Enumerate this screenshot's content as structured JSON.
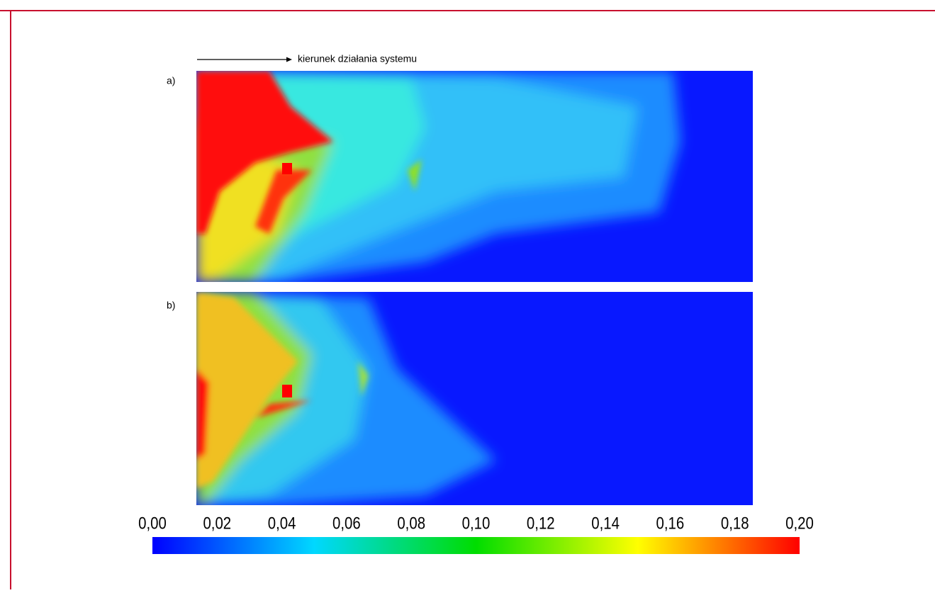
{
  "arrow_label": "kierunek działania systemu",
  "panels": [
    "a)",
    "b)"
  ],
  "colorbar": {
    "lim": [
      0,
      0.2
    ],
    "colors": [
      "#0000ff",
      "#00d8ff",
      "#00dd00",
      "#ffff00",
      "#ff0000"
    ],
    "ticks": [
      {
        "value": 0,
        "label": "0,00"
      },
      {
        "value": 0.02,
        "label": "0,02"
      },
      {
        "value": 0.04,
        "label": "0,04"
      },
      {
        "value": 0.06,
        "label": "0,06"
      },
      {
        "value": 0.08,
        "label": "0,08"
      },
      {
        "value": 0.1,
        "label": "0,10"
      },
      {
        "value": 0.12,
        "label": "0,12"
      },
      {
        "value": 0.14,
        "label": "0,14"
      },
      {
        "value": 0.16,
        "label": "0,16"
      },
      {
        "value": 0.18,
        "label": "0,18"
      },
      {
        "value": 0.2,
        "label": "0,20"
      }
    ]
  }
}
